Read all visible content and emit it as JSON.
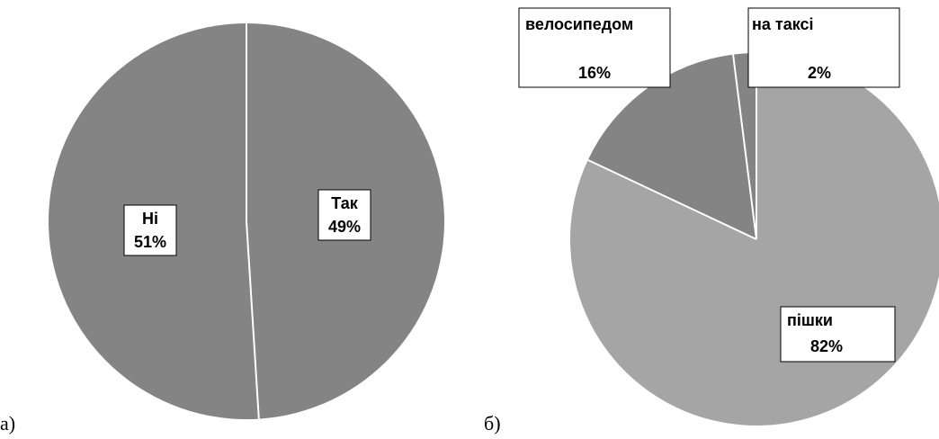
{
  "panels": [
    {
      "label": "а)"
    },
    {
      "label": "б)"
    }
  ],
  "colors": {
    "slice_dark": "#848484",
    "slice_light": "#a5a5a5",
    "separator": "#ffffff",
    "label_bg": "#ffffff",
    "label_border": "#000000"
  },
  "chart_data": [
    {
      "type": "pie",
      "title": "",
      "slices": [
        {
          "name": "Так",
          "value": 49,
          "value_label": "49%"
        },
        {
          "name": "Ні",
          "value": 51,
          "value_label": "51%"
        }
      ],
      "start_angle_deg": 0,
      "direction": "clockwise",
      "legend": "none"
    },
    {
      "type": "pie",
      "title": "",
      "slices": [
        {
          "name": "пішки",
          "value": 82,
          "value_label": "82%"
        },
        {
          "name": "велосипедом",
          "value": 16,
          "value_label": "16%"
        },
        {
          "name": "на таксі",
          "value": 2,
          "value_label": "2%"
        }
      ],
      "start_angle_deg": 0,
      "direction": "clockwise",
      "legend": "none"
    }
  ]
}
